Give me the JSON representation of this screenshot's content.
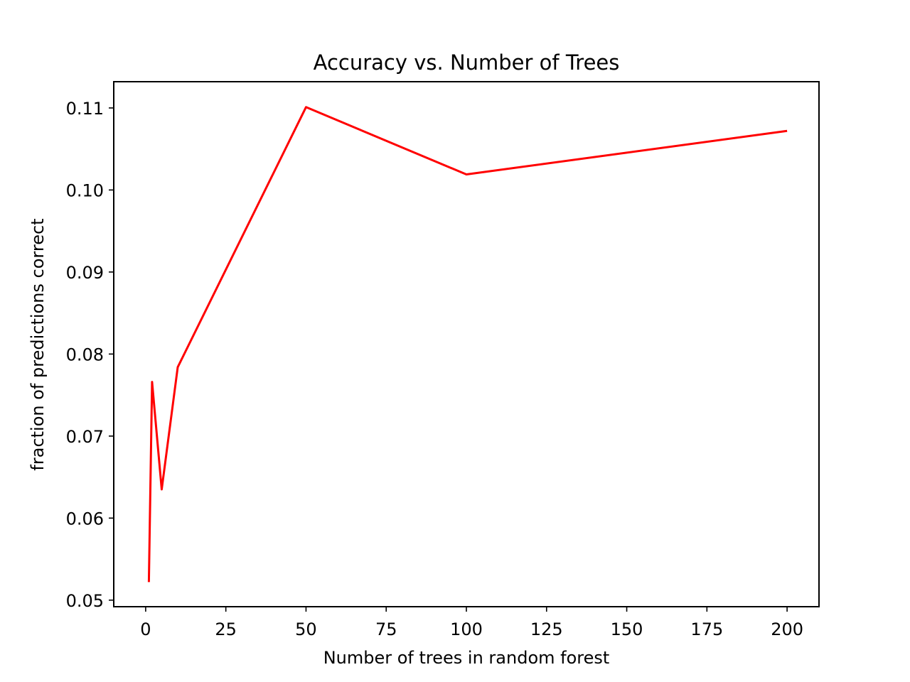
{
  "chart_data": {
    "type": "line",
    "title": "Accuracy vs. Number of Trees",
    "xlabel": "Number of trees in random forest",
    "ylabel": "fraction of predictions correct",
    "xlim": [
      -9.95,
      209.95
    ],
    "ylim": [
      0.0492,
      0.1132
    ],
    "x_ticks": [
      0,
      25,
      50,
      75,
      100,
      125,
      150,
      175,
      200
    ],
    "x_tick_labels": [
      "0",
      "25",
      "50",
      "75",
      "100",
      "125",
      "150",
      "175",
      "200"
    ],
    "y_ticks": [
      0.05,
      0.06,
      0.07,
      0.08,
      0.09,
      0.1,
      0.11
    ],
    "y_tick_labels": [
      "0.05",
      "0.06",
      "0.07",
      "0.08",
      "0.09",
      "0.10",
      "0.11"
    ],
    "grid": false,
    "legend": "none",
    "series": [
      {
        "color": "#ff0000",
        "x": [
          1,
          2,
          5,
          10,
          50,
          100,
          200
        ],
        "y": [
          0.0522,
          0.0766,
          0.0635,
          0.0784,
          0.1101,
          0.1019,
          0.1072
        ]
      }
    ]
  }
}
